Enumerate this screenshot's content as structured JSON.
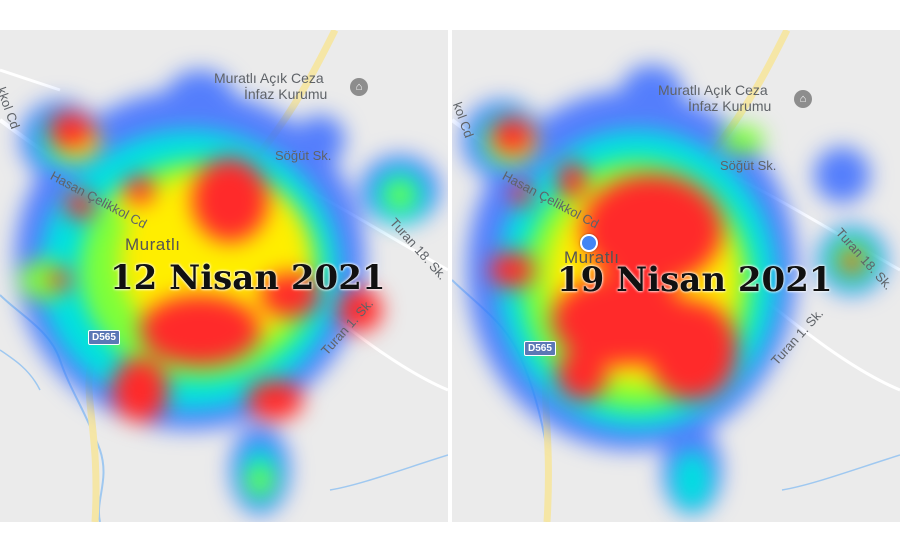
{
  "panels": [
    {
      "date_label": "12 Nisan 2021",
      "town_label": "Muratlı",
      "poi_line1": "Muratlı Açık Ceza",
      "poi_line2": "İnfaz Kurumu",
      "street_hasan": "Hasan Çelikkol Cd",
      "street_cd": "kkol Cd",
      "street_sogut": "Söğüt Sk.",
      "street_turan18": "Turan 18. Sk.",
      "street_turan1": "Turan 1. Sk.",
      "road_shield": "D565"
    },
    {
      "date_label": "19 Nisan 2021",
      "town_label": "Muratlı",
      "poi_line1": "Muratlı Açık Ceza",
      "poi_line2": "İnfaz Kurumu",
      "street_hasan": "Hasan Çelikkol Cd",
      "street_cd": "kol Cd",
      "street_sogut": "Söğüt Sk.",
      "street_turan18": "Turan 18. Sk.",
      "street_turan1": "Turan 1. Sk.",
      "road_shield": "D565"
    }
  ],
  "colors": {
    "heat_low": "#3a6cff",
    "heat_mid_low": "#00e0e0",
    "heat_mid": "#7dff3a",
    "heat_mid_high": "#ffee00",
    "heat_high": "#ff2a2a",
    "road_major": "#f5e6a6",
    "river": "#9fc8f0",
    "map_bg": "#ebebeb",
    "location_dot": "#4285f4"
  },
  "icons": [
    "prison-poi-icon",
    "current-location-dot"
  ]
}
